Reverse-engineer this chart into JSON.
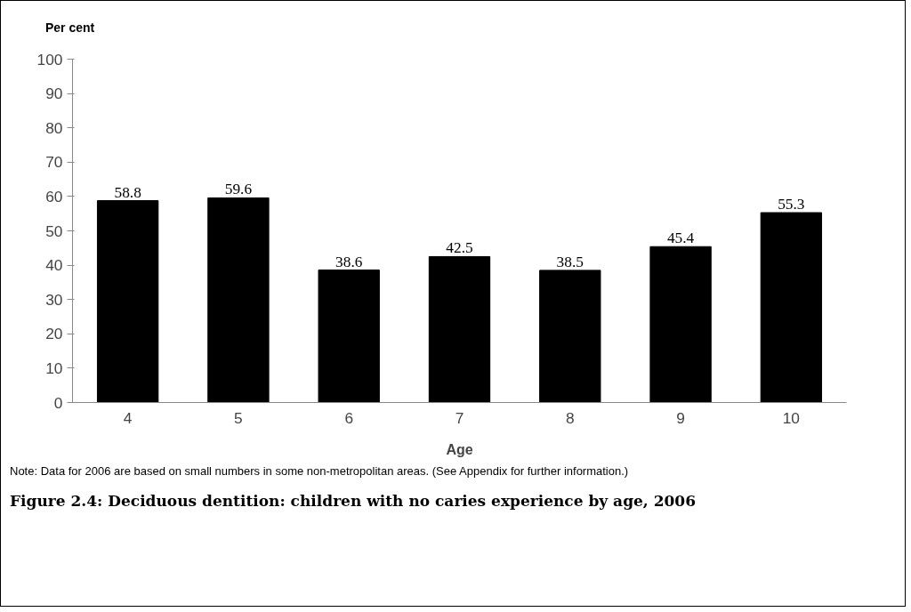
{
  "chart_data": {
    "type": "bar",
    "title": "Figure 2.4: Deciduous dentition: children with no caries experience by age, 2006",
    "xlabel": "Age",
    "ylabel": "Per cent",
    "categories": [
      "4",
      "5",
      "6",
      "7",
      "8",
      "9",
      "10"
    ],
    "values": [
      58.8,
      59.6,
      38.6,
      42.5,
      38.5,
      45.4,
      55.3
    ],
    "color": "#000000",
    "ylim": [
      0,
      100
    ],
    "yticks": [
      0,
      10,
      20,
      30,
      40,
      50,
      60,
      70,
      80,
      90,
      100
    ],
    "grid": false,
    "data_labels": true,
    "annotations": [
      "Note: Data for 2006 are based on small numbers in some non-metropolitan areas. (See Appendix for further information.)"
    ]
  }
}
